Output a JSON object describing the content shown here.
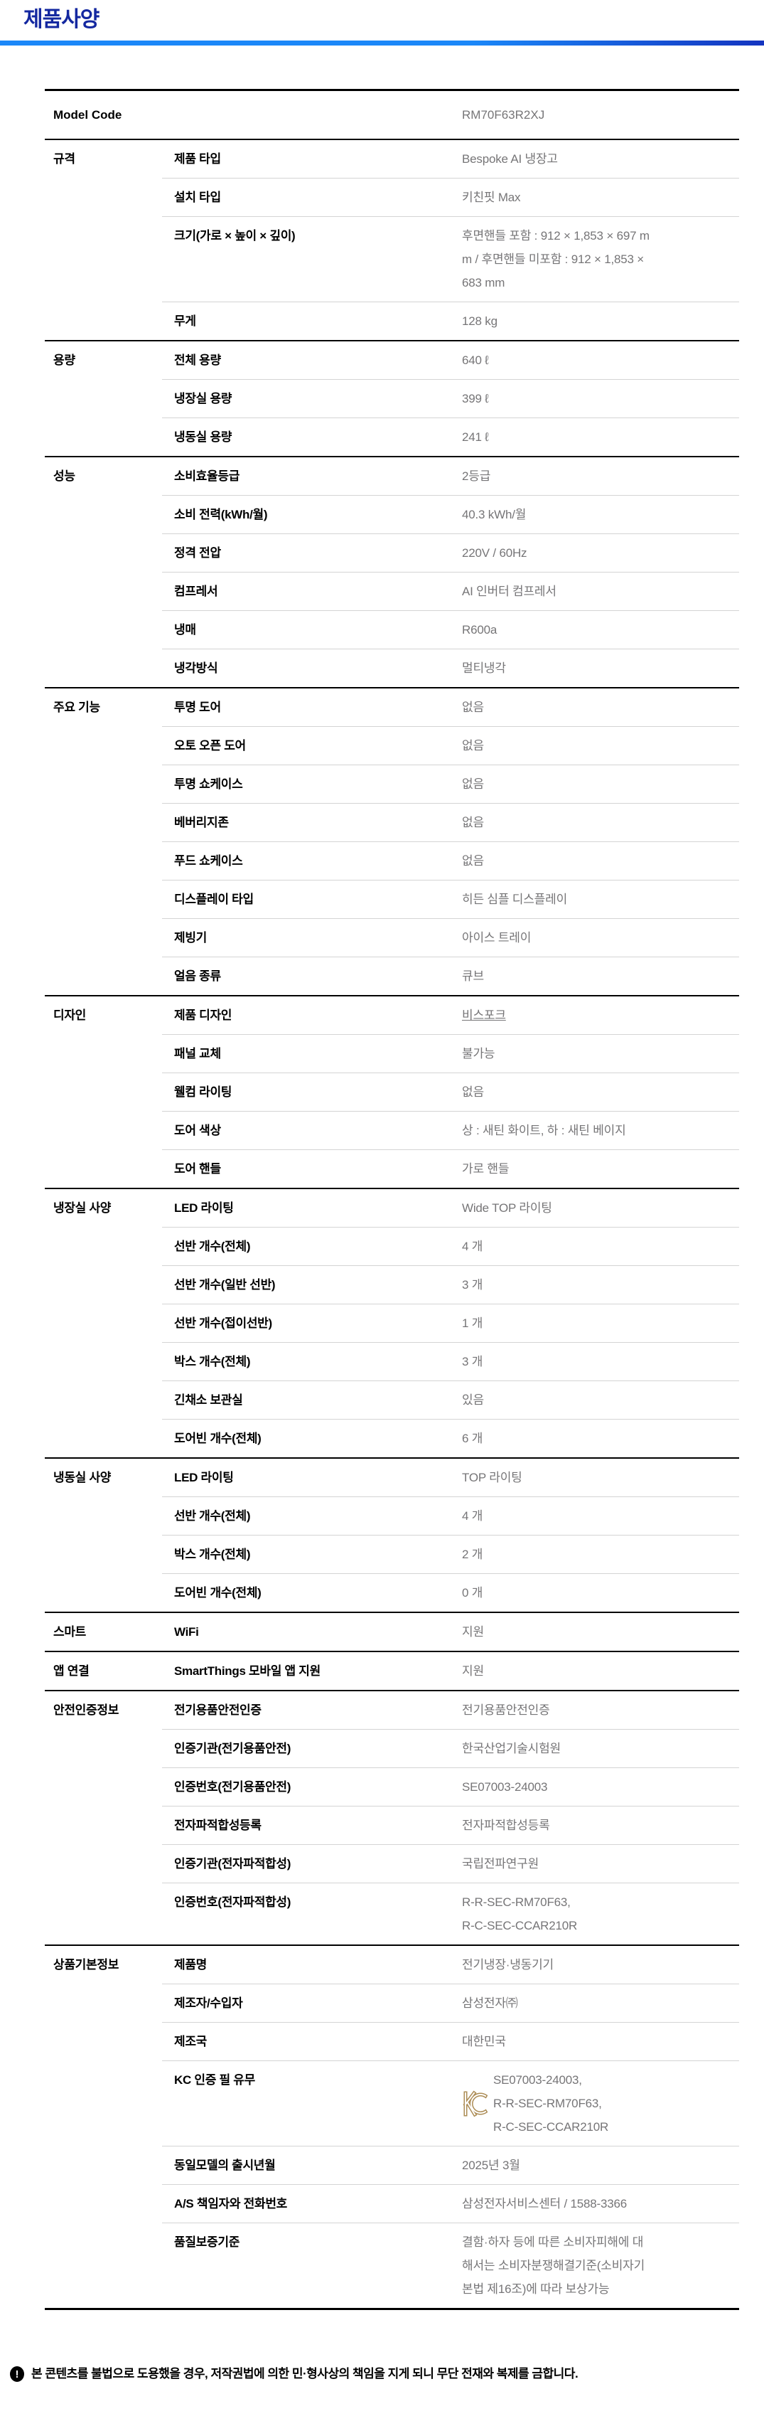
{
  "header": {
    "title": "제품사양"
  },
  "model_row": {
    "label": "Model Code",
    "value": "RM70F63R2XJ"
  },
  "sections": [
    {
      "category": "규격",
      "rows": [
        {
          "label": "제품 타입",
          "value": "Bespoke AI 냉장고"
        },
        {
          "label": "설치 타입",
          "value": "키친핏 Max"
        },
        {
          "label": "크기(가로 × 높이 × 깊이)",
          "value": "후면핸들 포함 : 912 × 1,853 × 697 m\nm / 후면핸들 미포함 : 912 × 1,853 ×\n683 mm"
        },
        {
          "label": "무게",
          "value": "128 kg"
        }
      ]
    },
    {
      "category": "용량",
      "rows": [
        {
          "label": "전체 용량",
          "value": "640 ℓ"
        },
        {
          "label": "냉장실 용량",
          "value": "399 ℓ"
        },
        {
          "label": "냉동실 용량",
          "value": "241 ℓ"
        }
      ]
    },
    {
      "category": "성능",
      "rows": [
        {
          "label": "소비효율등급",
          "value": "2등급"
        },
        {
          "label": "소비 전력(kWh/월)",
          "value": "40.3 kWh/월"
        },
        {
          "label": "정격 전압",
          "value": "220V / 60Hz"
        },
        {
          "label": "컴프레서",
          "value": "AI 인버터 컴프레서"
        },
        {
          "label": "냉매",
          "value": "R600a"
        },
        {
          "label": "냉각방식",
          "value": "멀티냉각"
        }
      ]
    },
    {
      "category": "주요 기능",
      "rows": [
        {
          "label": "투명 도어",
          "value": "없음"
        },
        {
          "label": "오토 오픈 도어",
          "value": "없음"
        },
        {
          "label": "투명 쇼케이스",
          "value": "없음"
        },
        {
          "label": "베버리지존",
          "value": "없음"
        },
        {
          "label": "푸드 쇼케이스",
          "value": "없음"
        },
        {
          "label": "디스플레이 타입",
          "value": "히든 심플 디스플레이"
        },
        {
          "label": "제빙기",
          "value": "아이스 트레이"
        },
        {
          "label": "얼음 종류",
          "value": "큐브"
        }
      ]
    },
    {
      "category": "디자인",
      "rows": [
        {
          "label": "제품 디자인",
          "value": "비스포크",
          "link": true
        },
        {
          "label": "패널 교체",
          "value": "불가능"
        },
        {
          "label": "웰컴 라이팅",
          "value": "없음"
        },
        {
          "label": "도어 색상",
          "value": "상 : 새틴 화이트, 하 : 새틴 베이지"
        },
        {
          "label": "도어 핸들",
          "value": "가로 핸들"
        }
      ]
    },
    {
      "category": "냉장실 사양",
      "rows": [
        {
          "label": "LED 라이팅",
          "value": "Wide TOP 라이팅"
        },
        {
          "label": "선반 개수(전체)",
          "value": "4 개"
        },
        {
          "label": "선반 개수(일반 선반)",
          "value": "3 개"
        },
        {
          "label": "선반 개수(접이선반)",
          "value": "1 개"
        },
        {
          "label": "박스 개수(전체)",
          "value": "3 개"
        },
        {
          "label": "긴채소 보관실",
          "value": "있음"
        },
        {
          "label": "도어빈 개수(전체)",
          "value": "6 개"
        }
      ]
    },
    {
      "category": "냉동실 사양",
      "rows": [
        {
          "label": "LED 라이팅",
          "value": "TOP 라이팅"
        },
        {
          "label": "선반 개수(전체)",
          "value": "4 개"
        },
        {
          "label": "박스 개수(전체)",
          "value": "2 개"
        },
        {
          "label": "도어빈 개수(전체)",
          "value": "0 개"
        }
      ]
    },
    {
      "category": "스마트",
      "rows": [
        {
          "label": "WiFi",
          "value": "지원"
        }
      ]
    },
    {
      "category": "앱 연결",
      "rows": [
        {
          "label": "SmartThings 모바일 앱 지원",
          "value": "지원"
        }
      ]
    },
    {
      "category": "안전인증정보",
      "rows": [
        {
          "label": "전기용품안전인증",
          "value": "전기용품안전인증"
        },
        {
          "label": "인증기관(전기용품안전)",
          "value": "한국산업기술시험원"
        },
        {
          "label": "인증번호(전기용품안전)",
          "value": "SE07003-24003"
        },
        {
          "label": "전자파적합성등록",
          "value": "전자파적합성등록"
        },
        {
          "label": "인증기관(전자파적합성)",
          "value": "국립전파연구원"
        },
        {
          "label": "인증번호(전자파적합성)",
          "value": "R-R-SEC-RM70F63,\nR-C-SEC-CCAR210R"
        }
      ]
    },
    {
      "category": "상품기본정보",
      "rows": [
        {
          "label": "제품명",
          "value": "전기냉장·냉동기기"
        },
        {
          "label": "제조자/수입자",
          "value": "삼성전자㈜"
        },
        {
          "label": "제조국",
          "value": "대한민국"
        },
        {
          "label": "KC 인증 필 유무",
          "value": "SE07003-24003,\nR-R-SEC-RM70F63,\nR-C-SEC-CCAR210R",
          "kc_mark": true
        },
        {
          "label": "동일모델의 출시년월",
          "value": "2025년 3월"
        },
        {
          "label": "A/S 책임자와 전화번호",
          "value": "삼성전자서비스센터 / 1588-3366"
        },
        {
          "label": "품질보증기준",
          "value": "결함·하자 등에 따른 소비자피해에 대\n해서는 소비자분쟁해결기준(소비자기\n본법 제16조)에 따라 보상가능"
        }
      ]
    }
  ],
  "footer": {
    "icon": "exclamation-icon",
    "text": "본 콘텐츠를 불법으로 도용했을 경우, 저작권법에 의한 민·형사상의 책임을 지게 되니 무단 전재와 복제를 금합니다."
  },
  "colors": {
    "title_blue": "#1428a0",
    "accent_gradient_start": "#1b87f8",
    "accent_gradient_end": "#1434c0",
    "value_gray": "#767577",
    "kc_gold": "#ac8c55",
    "row_divider": "#d4d4d4"
  }
}
